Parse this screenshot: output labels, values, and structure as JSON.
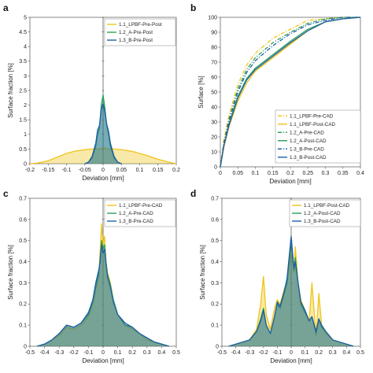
{
  "chart_data": [
    {
      "panel_label": "a",
      "type": "area",
      "xlabel": "Deviation [mm]",
      "ylabel": "Surface fraction [%]",
      "xlim": [
        -0.2,
        0.2
      ],
      "ylim": [
        0,
        5
      ],
      "xticks": [
        "-0.2",
        "-0.15",
        "-0.1",
        "-0.05",
        "0",
        "0.05",
        "0.1",
        "0.15",
        "0.2"
      ],
      "yticks": [
        "0",
        "0.5",
        "1",
        "1.5",
        "2",
        "2.5",
        "3",
        "3.5",
        "4",
        "4.5",
        "5"
      ],
      "legend_position": "top-right",
      "series": [
        {
          "name": "1.1_LPBF-Pre-Post",
          "color": "#f0c419",
          "style": "solid",
          "x": [
            -0.2,
            -0.18,
            -0.15,
            -0.12,
            -0.1,
            -0.08,
            -0.05,
            -0.03,
            -0.01,
            0,
            0.01,
            0.03,
            0.05,
            0.08,
            0.1,
            0.12,
            0.15,
            0.18,
            0.2
          ],
          "y": [
            0,
            0.02,
            0.1,
            0.25,
            0.35,
            0.42,
            0.48,
            0.5,
            0.5,
            0.55,
            0.5,
            0.5,
            0.48,
            0.42,
            0.35,
            0.28,
            0.15,
            0.05,
            0
          ]
        },
        {
          "name": "1.2_A-Pre-Post",
          "color": "#2ca05a",
          "style": "solid",
          "x": [
            -0.05,
            -0.04,
            -0.03,
            -0.02,
            -0.015,
            -0.01,
            -0.005,
            0,
            0.005,
            0.01,
            0.015,
            0.02,
            0.03,
            0.04,
            0.05
          ],
          "y": [
            0,
            0.05,
            0.2,
            0.6,
            1.0,
            1.2,
            2.0,
            2.35,
            1.9,
            1.3,
            1.0,
            0.6,
            0.2,
            0.05,
            0
          ]
        },
        {
          "name": "1.3_B-Pre-Post",
          "color": "#1f5fa8",
          "style": "solid",
          "x": [
            -0.05,
            -0.04,
            -0.03,
            -0.02,
            -0.015,
            -0.01,
            -0.005,
            0,
            0.005,
            0.01,
            0.015,
            0.02,
            0.03,
            0.04,
            0.05
          ],
          "y": [
            0,
            0.05,
            0.25,
            0.7,
            1.15,
            1.3,
            1.85,
            2.05,
            1.75,
            1.35,
            1.1,
            0.7,
            0.25,
            0.05,
            0
          ]
        }
      ]
    },
    {
      "panel_label": "b",
      "type": "line",
      "xlabel": "Deviation [mm]",
      "ylabel": "Surface [%]",
      "xlim": [
        0,
        0.4
      ],
      "ylim": [
        0,
        100
      ],
      "xticks": [
        "0",
        "0.05",
        "0.1",
        "0.15",
        "0.2",
        "0.25",
        "0.3",
        "0.35",
        "0.4"
      ],
      "yticks": [
        "0",
        "10",
        "20",
        "30",
        "40",
        "50",
        "60",
        "70",
        "80",
        "90",
        "100"
      ],
      "legend_position": "bottom-right",
      "series": [
        {
          "name": "1.1_LPBF-Pre-CAD",
          "color": "#f0c419",
          "style": "dashdot",
          "x": [
            0,
            0.01,
            0.025,
            0.05,
            0.075,
            0.1,
            0.15,
            0.2,
            0.25,
            0.3,
            0.35,
            0.4
          ],
          "y": [
            0,
            18,
            35,
            55,
            68,
            76,
            86,
            92,
            98,
            99,
            100,
            100
          ]
        },
        {
          "name": "1.1_LPBF-Post-CAD",
          "color": "#f0c419",
          "style": "solid",
          "x": [
            0,
            0.01,
            0.025,
            0.05,
            0.075,
            0.1,
            0.15,
            0.2,
            0.25,
            0.3,
            0.35,
            0.4
          ],
          "y": [
            0,
            13,
            27,
            44,
            56,
            64,
            73,
            82,
            91,
            97,
            99,
            100
          ]
        },
        {
          "name": "1.2_A-Pre-CAD",
          "color": "#2ca05a",
          "style": "dashdot",
          "x": [
            0,
            0.01,
            0.025,
            0.05,
            0.075,
            0.1,
            0.15,
            0.2,
            0.25,
            0.3,
            0.35,
            0.4
          ],
          "y": [
            0,
            16,
            32,
            52,
            65,
            73,
            83,
            90,
            96,
            99,
            100,
            100
          ]
        },
        {
          "name": "1.2_A-Post-CAD",
          "color": "#2ca05a",
          "style": "solid",
          "x": [
            0,
            0.01,
            0.025,
            0.05,
            0.075,
            0.1,
            0.15,
            0.2,
            0.25,
            0.3,
            0.35,
            0.4
          ],
          "y": [
            0,
            14,
            29,
            47,
            59,
            66,
            75,
            84,
            92,
            97,
            99,
            100
          ]
        },
        {
          "name": "1.3_B-Pre-CAD",
          "color": "#1f5fa8",
          "style": "dashdot",
          "x": [
            0,
            0.01,
            0.025,
            0.05,
            0.075,
            0.1,
            0.15,
            0.2,
            0.25,
            0.3,
            0.35,
            0.4
          ],
          "y": [
            0,
            15,
            31,
            50,
            63,
            71,
            81,
            89,
            95,
            98,
            100,
            100
          ]
        },
        {
          "name": "1.3_B-Post-CAD",
          "color": "#1f5fa8",
          "style": "solid",
          "x": [
            0,
            0.01,
            0.025,
            0.05,
            0.075,
            0.1,
            0.15,
            0.2,
            0.25,
            0.3,
            0.35,
            0.4
          ],
          "y": [
            0,
            14,
            28,
            46,
            58,
            65,
            74,
            83,
            91,
            97,
            99,
            100
          ]
        }
      ]
    },
    {
      "panel_label": "c",
      "type": "area",
      "xlabel": "Deviation [mm]",
      "ylabel": "Surface fraction [%]",
      "xlim": [
        -0.5,
        0.5
      ],
      "ylim": [
        0,
        0.7
      ],
      "xticks": [
        "-0.5",
        "-0.4",
        "-0.3",
        "-0.2",
        "-0.1",
        "0",
        "0.1",
        "0.2",
        "0.3",
        "0.4",
        "0.5"
      ],
      "yticks": [
        "0",
        "0.1",
        "0.2",
        "0.3",
        "0.4",
        "0.5",
        "0.6",
        "0.7"
      ],
      "legend_position": "top-right",
      "series": [
        {
          "name": "1.1_LPBF-Pre-CAD",
          "color": "#f0c419",
          "style": "solid",
          "x": [
            -0.45,
            -0.4,
            -0.35,
            -0.3,
            -0.25,
            -0.2,
            -0.15,
            -0.1,
            -0.07,
            -0.05,
            -0.03,
            -0.02,
            -0.01,
            0,
            0.01,
            0.02,
            0.03,
            0.05,
            0.07,
            0.1,
            0.15,
            0.2,
            0.25,
            0.3,
            0.35,
            0.4,
            0.45
          ],
          "y": [
            0,
            0.01,
            0.03,
            0.05,
            0.09,
            0.08,
            0.1,
            0.14,
            0.2,
            0.27,
            0.33,
            0.45,
            0.58,
            0.48,
            0.52,
            0.4,
            0.35,
            0.3,
            0.22,
            0.15,
            0.1,
            0.08,
            0.06,
            0.03,
            0.02,
            0.01,
            0
          ]
        },
        {
          "name": "1.2_A-Pre-CAD",
          "color": "#2ca05a",
          "style": "solid",
          "x": [
            -0.45,
            -0.4,
            -0.35,
            -0.3,
            -0.25,
            -0.2,
            -0.15,
            -0.1,
            -0.07,
            -0.05,
            -0.03,
            -0.02,
            -0.01,
            0,
            0.01,
            0.02,
            0.03,
            0.05,
            0.07,
            0.1,
            0.15,
            0.2,
            0.25,
            0.3,
            0.35,
            0.4,
            0.45
          ],
          "y": [
            0,
            0.01,
            0.03,
            0.06,
            0.1,
            0.09,
            0.11,
            0.15,
            0.21,
            0.28,
            0.34,
            0.42,
            0.5,
            0.46,
            0.48,
            0.4,
            0.34,
            0.29,
            0.22,
            0.15,
            0.1,
            0.09,
            0.06,
            0.04,
            0.02,
            0.01,
            0
          ]
        },
        {
          "name": "1.3_B-Pre-CAD",
          "color": "#1f5fa8",
          "style": "solid",
          "x": [
            -0.45,
            -0.4,
            -0.35,
            -0.3,
            -0.25,
            -0.2,
            -0.15,
            -0.1,
            -0.07,
            -0.05,
            -0.03,
            -0.02,
            -0.01,
            0,
            0.01,
            0.02,
            0.03,
            0.05,
            0.07,
            0.1,
            0.15,
            0.2,
            0.25,
            0.3,
            0.35,
            0.4,
            0.45
          ],
          "y": [
            0,
            0.01,
            0.03,
            0.06,
            0.1,
            0.09,
            0.11,
            0.16,
            0.22,
            0.3,
            0.36,
            0.4,
            0.48,
            0.44,
            0.46,
            0.39,
            0.33,
            0.28,
            0.21,
            0.15,
            0.11,
            0.09,
            0.06,
            0.04,
            0.02,
            0.01,
            0
          ]
        }
      ]
    },
    {
      "panel_label": "d",
      "type": "area",
      "xlabel": "Deviation [mm]",
      "ylabel": "Surface fraction [%]",
      "xlim": [
        -0.5,
        0.5
      ],
      "ylim": [
        0,
        0.7
      ],
      "xticks": [
        "-0.5",
        "-0.4",
        "-0.3",
        "-0.2",
        "-0.1",
        "0",
        "0.1",
        "0.2",
        "0.3",
        "0.4",
        "0.5"
      ],
      "yticks": [
        "0",
        "0.1",
        "0.2",
        "0.3",
        "0.4",
        "0.5",
        "0.6",
        "0.7"
      ],
      "legend_position": "top-right",
      "series": [
        {
          "name": "1.1_LPBF-Post-CAD",
          "color": "#f0c419",
          "style": "solid",
          "x": [
            -0.45,
            -0.4,
            -0.3,
            -0.25,
            -0.22,
            -0.2,
            -0.18,
            -0.15,
            -0.12,
            -0.1,
            -0.08,
            -0.05,
            -0.03,
            0,
            0.02,
            0.03,
            0.05,
            0.07,
            0.1,
            0.13,
            0.15,
            0.18,
            0.2,
            0.22,
            0.25,
            0.3,
            0.4,
            0.45
          ],
          "y": [
            0,
            0.01,
            0.03,
            0.08,
            0.2,
            0.33,
            0.15,
            0.08,
            0.18,
            0.22,
            0.2,
            0.27,
            0.3,
            0.45,
            0.35,
            0.47,
            0.3,
            0.22,
            0.17,
            0.12,
            0.3,
            0.05,
            0.25,
            0.1,
            0.06,
            0.03,
            0.01,
            0
          ]
        },
        {
          "name": "1.2_A-Post-CAD",
          "color": "#2ca05a",
          "style": "solid",
          "x": [
            -0.45,
            -0.4,
            -0.3,
            -0.25,
            -0.22,
            -0.2,
            -0.18,
            -0.15,
            -0.12,
            -0.1,
            -0.08,
            -0.05,
            -0.03,
            0,
            0.02,
            0.03,
            0.05,
            0.07,
            0.1,
            0.13,
            0.15,
            0.18,
            0.2,
            0.22,
            0.25,
            0.3,
            0.4,
            0.45
          ],
          "y": [
            0,
            0.01,
            0.03,
            0.07,
            0.13,
            0.18,
            0.1,
            0.06,
            0.14,
            0.2,
            0.18,
            0.25,
            0.3,
            0.5,
            0.36,
            0.42,
            0.3,
            0.2,
            0.16,
            0.12,
            0.14,
            0.06,
            0.13,
            0.09,
            0.07,
            0.03,
            0.01,
            0
          ]
        },
        {
          "name": "1.3_B-Post-CAD",
          "color": "#1f5fa8",
          "style": "solid",
          "x": [
            -0.45,
            -0.4,
            -0.3,
            -0.25,
            -0.22,
            -0.2,
            -0.18,
            -0.15,
            -0.12,
            -0.1,
            -0.08,
            -0.05,
            -0.03,
            0,
            0.02,
            0.03,
            0.05,
            0.07,
            0.1,
            0.13,
            0.15,
            0.18,
            0.2,
            0.22,
            0.25,
            0.3,
            0.4,
            0.45
          ],
          "y": [
            0,
            0.01,
            0.03,
            0.07,
            0.12,
            0.17,
            0.1,
            0.06,
            0.14,
            0.21,
            0.19,
            0.26,
            0.32,
            0.52,
            0.37,
            0.4,
            0.3,
            0.21,
            0.17,
            0.12,
            0.14,
            0.07,
            0.13,
            0.1,
            0.07,
            0.03,
            0.01,
            0
          ]
        }
      ]
    }
  ]
}
